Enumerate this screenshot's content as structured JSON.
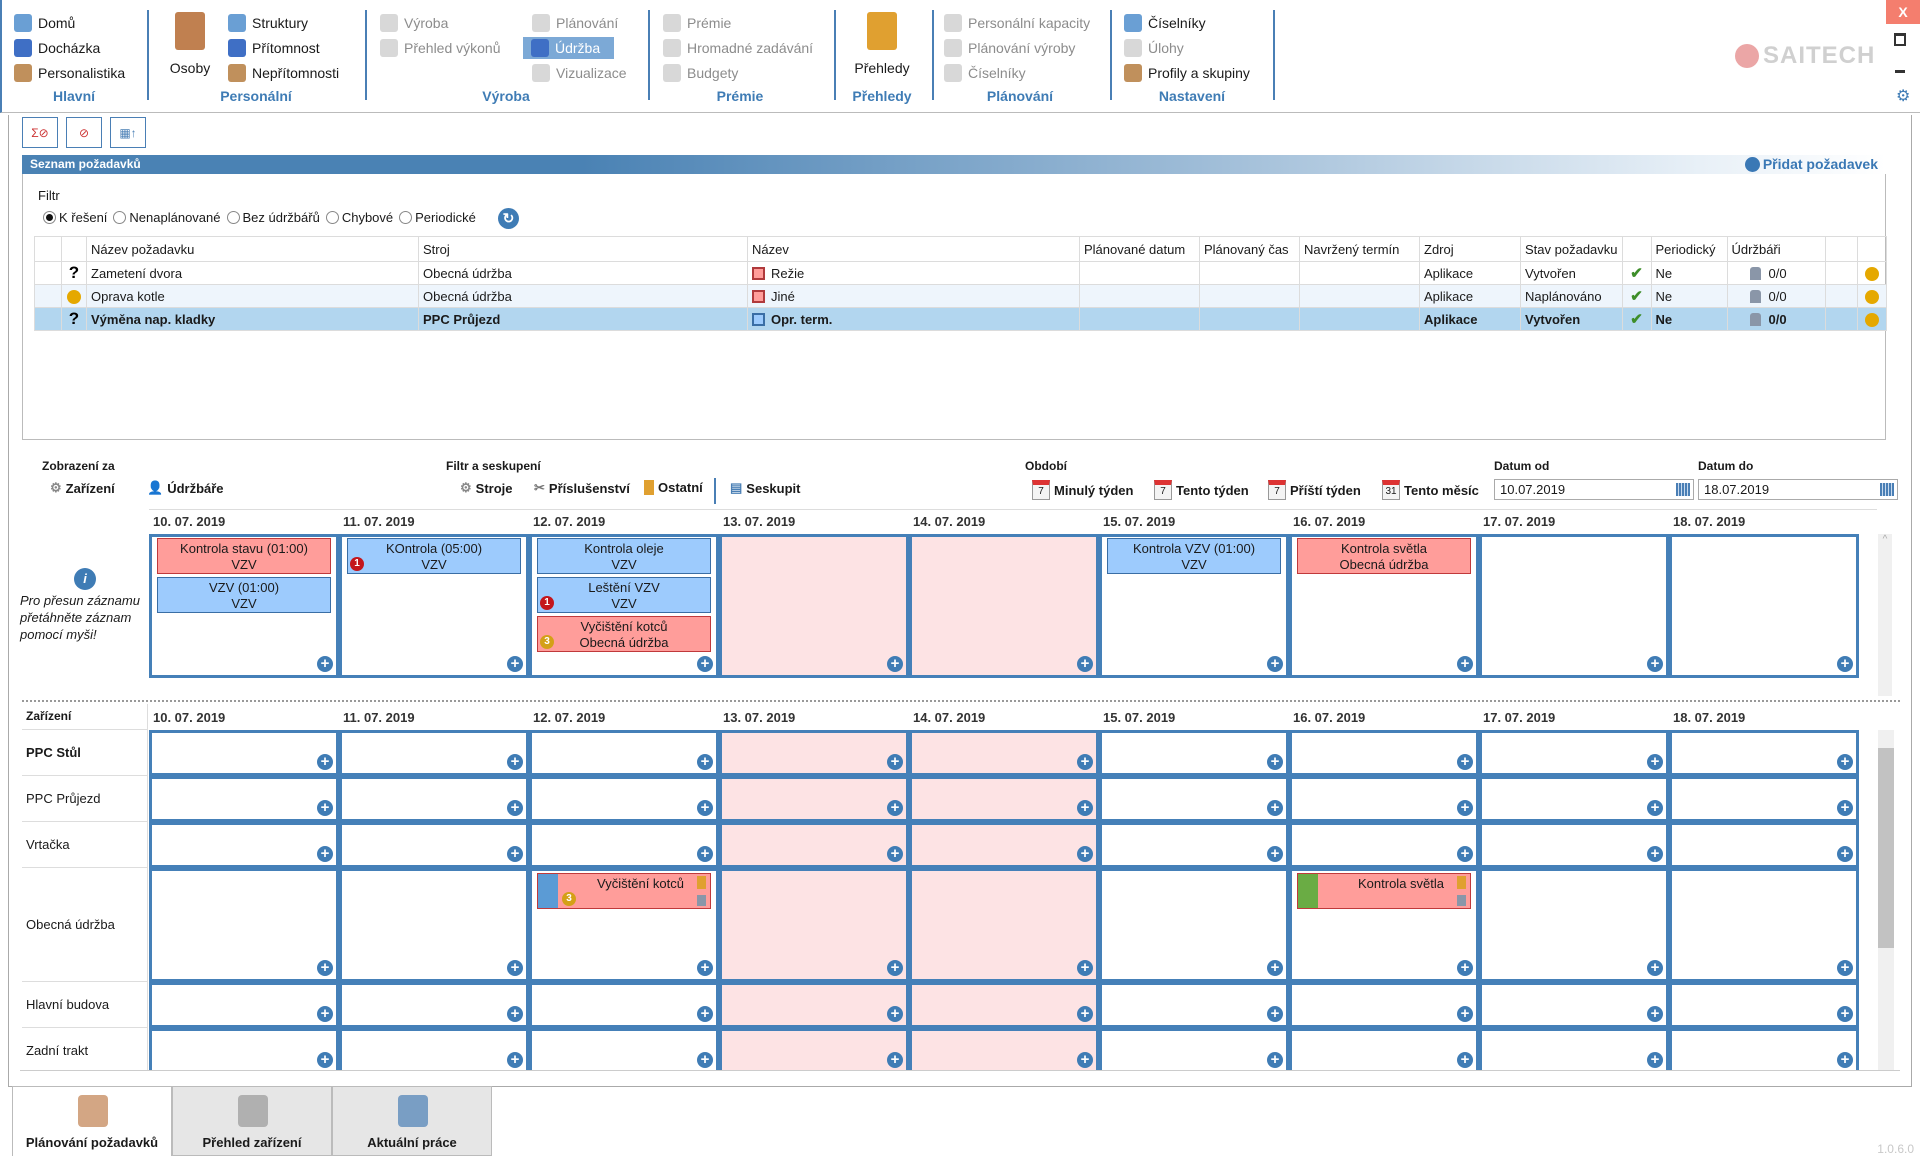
{
  "ribbon": {
    "groups": [
      {
        "label": "Hlavní",
        "items": [
          "Domů",
          "Docházka",
          "Personalistika"
        ]
      },
      {
        "label": "Personální",
        "big": "Osoby",
        "items": [
          "Struktury",
          "Přítomnost",
          "Nepřítomnosti"
        ]
      },
      {
        "label": "Výroba",
        "items": [
          "Výroba",
          "Přehled výkonů",
          "Plánování",
          "Údržba",
          "Vizualizace"
        ]
      },
      {
        "label": "Prémie",
        "items": [
          "Prémie",
          "Hromadné zadávání",
          "Budgety"
        ]
      },
      {
        "label": "Přehledy",
        "big": "Přehledy"
      },
      {
        "label": "Plánování",
        "items": [
          "Personální kapacity",
          "Plánování výroby",
          "Číselníky"
        ]
      },
      {
        "label": "Nastavení",
        "items": [
          "Číselníky",
          "Úlohy",
          "Profily a skupiny"
        ]
      }
    ],
    "logo": "SAITECH",
    "close": "X"
  },
  "requests": {
    "title": "Seznam požadavků",
    "add_label": "Přidat požadavek",
    "filter_label": "Filtr",
    "filters": [
      "K řešení",
      "Nenaplánované",
      "Bez údržbářů",
      "Chybové",
      "Periodické"
    ],
    "selected_filter": 0,
    "columns": [
      "",
      "",
      "Název požadavku",
      "Stroj",
      "Název",
      "Plánované datum",
      "Plánovaný čas",
      "Navržený termín",
      "Zdroj",
      "Stav požadavku",
      "",
      "Periodický",
      "Údržbáři",
      "",
      ""
    ],
    "rows": [
      {
        "status": "?",
        "name": "Zametení dvora",
        "machine": "Obecná údržba",
        "type": "Režie",
        "type_color": "#ff9d9a",
        "planned_date": "",
        "planned_time": "",
        "proposed": "",
        "source": "Aplikace",
        "state": "Vytvořen",
        "periodic": "Ne",
        "workers": "0/0"
      },
      {
        "status": "●",
        "name": "Oprava kotle",
        "machine": "Obecná údržba",
        "type": "Jiné",
        "type_color": "#ff9d9a",
        "planned_date": "",
        "planned_time": "",
        "proposed": "",
        "source": "Aplikace",
        "state": "Naplánováno",
        "periodic": "Ne",
        "workers": "0/0"
      },
      {
        "status": "?",
        "name": "Výměna nap. kladky",
        "machine": "PPC Průjezd",
        "type": "Opr. term.",
        "type_color": "#9dcbfd",
        "planned_date": "",
        "planned_time": "",
        "proposed": "",
        "source": "Aplikace",
        "state": "Vytvořen",
        "periodic": "Ne",
        "workers": "0/0",
        "selected": true
      }
    ]
  },
  "scheduler": {
    "view_label": "Zobrazení za",
    "view_options": [
      "Zařízení",
      "Údržbáře"
    ],
    "filter_label": "Filtr a seskupení",
    "filter_options": [
      "Stroje",
      "Příslušenství",
      "Ostatní",
      "Seskupit"
    ],
    "period_label": "Období",
    "periods": [
      {
        "label": "Minulý týden",
        "icon": "7"
      },
      {
        "label": "Tento týden",
        "icon": "7"
      },
      {
        "label": "Příští týden",
        "icon": "7"
      },
      {
        "label": "Tento měsíc",
        "icon": "31"
      }
    ],
    "date_from_label": "Datum od",
    "date_from": "10.07.2019",
    "date_to_label": "Datum do",
    "date_to": "18.07.2019",
    "hint": "Pro přesun záznamu přetáhněte záznam pomocí myši!",
    "days": [
      "10. 07. 2019",
      "11. 07. 2019",
      "12. 07. 2019",
      "13. 07. 2019",
      "14. 07. 2019",
      "15. 07. 2019",
      "16. 07. 2019",
      "17. 07. 2019",
      "18. 07. 2019"
    ],
    "weekend": [
      3,
      4
    ],
    "unassigned_events": [
      {
        "day": 0,
        "title": "Kontrola stavu (01:00)",
        "sub": "VZV",
        "color": "red"
      },
      {
        "day": 0,
        "title": "VZV (01:00)",
        "sub": "VZV",
        "color": "blue"
      },
      {
        "day": 1,
        "title": "KOntrola (05:00)",
        "sub": "VZV",
        "color": "blue",
        "badge": "1",
        "badge_color": "#c4161c"
      },
      {
        "day": 2,
        "title": "Kontrola oleje",
        "sub": "VZV",
        "color": "blue"
      },
      {
        "day": 2,
        "title": "Leštění VZV",
        "sub": "VZV",
        "color": "blue",
        "badge": "1",
        "badge_color": "#c4161c"
      },
      {
        "day": 2,
        "title": "Vyčištění kotců",
        "sub": "Obecná údržba",
        "color": "red",
        "badge": "3",
        "badge_color": "#d4a017"
      },
      {
        "day": 5,
        "title": "Kontrola VZV (01:00)",
        "sub": "VZV",
        "color": "blue"
      },
      {
        "day": 6,
        "title": "Kontrola světla",
        "sub": "Obecná údržba",
        "color": "red"
      }
    ],
    "resource_header": "Zařízení",
    "resources": [
      "PPC Stůl",
      "PPC Průjezd",
      "Vrtačka",
      "Obecná údržba",
      "Hlavní budova",
      "Zadní trakt"
    ],
    "resource_events": [
      {
        "row": 3,
        "day": 2,
        "title": "Vyčištění kotců",
        "stripe": "#5b9bd5",
        "badge": "3",
        "badge_color": "#d4a017"
      },
      {
        "row": 3,
        "day": 6,
        "title": "Kontrola světla",
        "stripe": "#6aac44"
      }
    ]
  },
  "tabs": [
    {
      "label": "Plánování požadavků",
      "active": true
    },
    {
      "label": "Přehled zařízení"
    },
    {
      "label": "Aktuální práce"
    }
  ],
  "version": "1.0.6.0"
}
